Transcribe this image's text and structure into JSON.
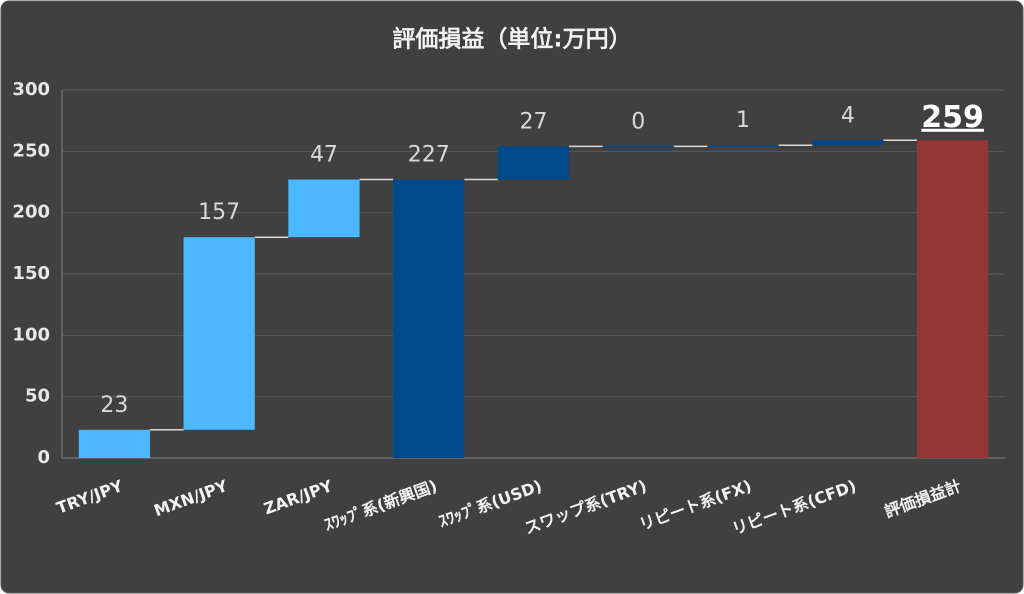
{
  "chart_data": {
    "type": "waterfall",
    "title": "評価損益（単位:万円）",
    "categories": [
      "TRY/JPY",
      "MXN/JPY",
      "ZAR/JPY",
      "ｽﾜｯﾌﾟ系(新興国)",
      "ｽﾜｯﾌﾟ系(USD)",
      "スワップ系(TRY)",
      "リピート系(FX)",
      "リピート系(CFD)",
      "評価損益計"
    ],
    "values": [
      23,
      157,
      47,
      227,
      27,
      0,
      1,
      4,
      259
    ],
    "totals": [
      false,
      false,
      false,
      true,
      false,
      false,
      false,
      false,
      true
    ],
    "colors": [
      "#4db8ff",
      "#4db8ff",
      "#4db8ff",
      "#004a8c",
      "#004a8c",
      "#004a8c",
      "#004a8c",
      "#004a8c",
      "#943634"
    ],
    "ylim": [
      0,
      300
    ],
    "yticks": [
      0,
      50,
      100,
      150,
      200,
      250,
      300
    ],
    "grid": true
  }
}
